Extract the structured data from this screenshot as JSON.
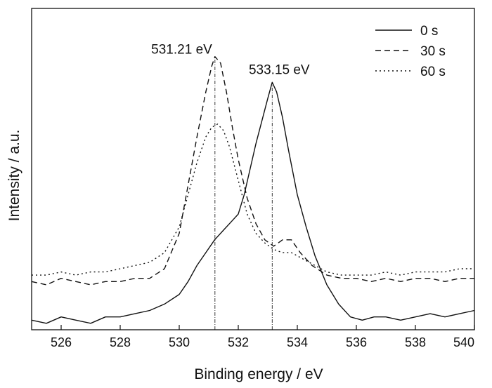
{
  "chart_data": {
    "type": "line",
    "xlabel": "Binding energy / eV",
    "ylabel": "Intensity / a.u.",
    "xlim": [
      525,
      540
    ],
    "ylim": [
      0,
      1
    ],
    "xticks": [
      526,
      528,
      530,
      532,
      534,
      536,
      538,
      540
    ],
    "grid": false,
    "legend_position": "top-right",
    "annotations": [
      {
        "text": "531.21 eV",
        "x": 531.21
      },
      {
        "text": "533.15 eV",
        "x": 533.15
      }
    ],
    "series": [
      {
        "name": "0 s",
        "style": "solid",
        "x": [
          525.0,
          525.5,
          526.0,
          526.5,
          527.0,
          527.5,
          528.0,
          528.5,
          529.0,
          529.5,
          530.0,
          530.3,
          530.6,
          530.9,
          531.2,
          531.5,
          531.8,
          532.0,
          532.2,
          532.4,
          532.6,
          532.8,
          533.0,
          533.15,
          533.3,
          533.5,
          533.7,
          534.0,
          534.3,
          534.6,
          535.0,
          535.4,
          535.8,
          536.2,
          536.6,
          537.0,
          537.5,
          538.0,
          538.5,
          539.0,
          539.5,
          540.0
        ],
        "y": [
          0.03,
          0.02,
          0.04,
          0.03,
          0.02,
          0.04,
          0.04,
          0.05,
          0.06,
          0.08,
          0.11,
          0.15,
          0.2,
          0.24,
          0.28,
          0.31,
          0.34,
          0.36,
          0.42,
          0.5,
          0.58,
          0.65,
          0.72,
          0.77,
          0.74,
          0.66,
          0.56,
          0.42,
          0.32,
          0.23,
          0.14,
          0.08,
          0.04,
          0.03,
          0.04,
          0.04,
          0.03,
          0.04,
          0.05,
          0.04,
          0.05,
          0.06
        ]
      },
      {
        "name": "30 s",
        "style": "dashed",
        "x": [
          525.0,
          525.5,
          526.0,
          526.5,
          527.0,
          527.5,
          528.0,
          528.5,
          529.0,
          529.5,
          530.0,
          530.3,
          530.6,
          530.9,
          531.1,
          531.21,
          531.4,
          531.6,
          531.8,
          532.0,
          532.3,
          532.6,
          532.9,
          533.2,
          533.5,
          533.8,
          534.1,
          534.5,
          535.0,
          535.5,
          536.0,
          536.5,
          537.0,
          537.5,
          538.0,
          538.5,
          539.0,
          539.5,
          540.0
        ],
        "y": [
          0.15,
          0.14,
          0.16,
          0.15,
          0.14,
          0.15,
          0.15,
          0.16,
          0.16,
          0.19,
          0.3,
          0.45,
          0.6,
          0.74,
          0.82,
          0.85,
          0.83,
          0.74,
          0.63,
          0.53,
          0.41,
          0.33,
          0.28,
          0.26,
          0.28,
          0.28,
          0.24,
          0.2,
          0.17,
          0.16,
          0.16,
          0.15,
          0.16,
          0.15,
          0.16,
          0.16,
          0.15,
          0.16,
          0.16
        ]
      },
      {
        "name": "60 s",
        "style": "dotted",
        "x": [
          525.0,
          525.5,
          526.0,
          526.5,
          527.0,
          527.5,
          528.0,
          528.5,
          529.0,
          529.5,
          530.0,
          530.3,
          530.6,
          530.9,
          531.1,
          531.3,
          531.5,
          531.7,
          531.9,
          532.1,
          532.3,
          532.6,
          532.9,
          533.2,
          533.5,
          533.8,
          534.2,
          534.6,
          535.0,
          535.5,
          536.0,
          536.5,
          537.0,
          537.5,
          538.0,
          538.5,
          539.0,
          539.5,
          540.0
        ],
        "y": [
          0.17,
          0.17,
          0.18,
          0.17,
          0.18,
          0.18,
          0.19,
          0.2,
          0.21,
          0.24,
          0.32,
          0.42,
          0.52,
          0.6,
          0.63,
          0.64,
          0.62,
          0.57,
          0.5,
          0.43,
          0.36,
          0.3,
          0.27,
          0.25,
          0.24,
          0.24,
          0.22,
          0.2,
          0.18,
          0.17,
          0.17,
          0.17,
          0.18,
          0.17,
          0.18,
          0.18,
          0.18,
          0.19,
          0.19
        ]
      }
    ]
  }
}
